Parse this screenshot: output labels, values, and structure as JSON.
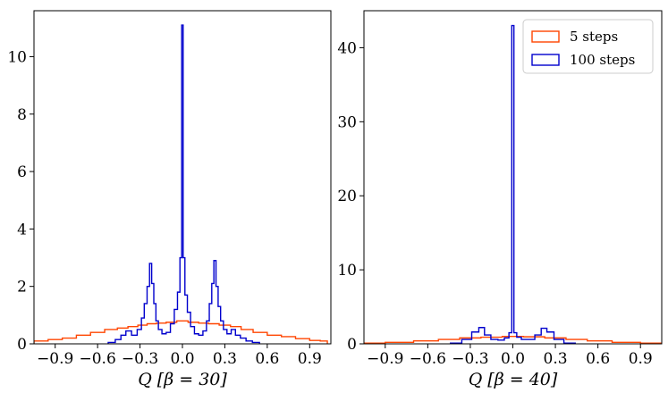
{
  "chart_data": [
    {
      "type": "histogram",
      "xlabel": "Q [β = 30]",
      "xlim": [
        -1.05,
        1.05
      ],
      "ylim": [
        0,
        11.6
      ],
      "xticks": [
        -0.9,
        -0.6,
        -0.3,
        0.0,
        0.3,
        0.6,
        0.9
      ],
      "xtick_labels": [
        "−0.9",
        "−0.6",
        "−0.3",
        "0.0",
        "0.3",
        "0.6",
        "0.9"
      ],
      "yticks": [
        0,
        2,
        4,
        6,
        8,
        10
      ],
      "ytick_labels": [
        "0",
        "2",
        "4",
        "6",
        "8",
        "10"
      ],
      "series": [
        {
          "name": "5 steps",
          "color": "#ff4500",
          "points": [
            [
              -1.0,
              0.1
            ],
            [
              -0.9,
              0.15
            ],
            [
              -0.8,
              0.2
            ],
            [
              -0.7,
              0.3
            ],
            [
              -0.6,
              0.4
            ],
            [
              -0.5,
              0.5
            ],
            [
              -0.42,
              0.55
            ],
            [
              -0.35,
              0.6
            ],
            [
              -0.28,
              0.65
            ],
            [
              -0.22,
              0.7
            ],
            [
              -0.15,
              0.72
            ],
            [
              -0.08,
              0.75
            ],
            [
              0.0,
              0.8
            ],
            [
              0.08,
              0.75
            ],
            [
              0.15,
              0.72
            ],
            [
              0.22,
              0.7
            ],
            [
              0.3,
              0.65
            ],
            [
              0.38,
              0.6
            ],
            [
              0.45,
              0.5
            ],
            [
              0.55,
              0.4
            ],
            [
              0.65,
              0.3
            ],
            [
              0.75,
              0.25
            ],
            [
              0.85,
              0.18
            ],
            [
              0.95,
              0.12
            ],
            [
              1.0,
              0.1
            ]
          ]
        },
        {
          "name": "100 steps",
          "color": "#0000cd",
          "points": [
            [
              -0.5,
              0.05
            ],
            [
              -0.45,
              0.15
            ],
            [
              -0.42,
              0.3
            ],
            [
              -0.38,
              0.45
            ],
            [
              -0.34,
              0.3
            ],
            [
              -0.3,
              0.5
            ],
            [
              -0.28,
              0.9
            ],
            [
              -0.26,
              1.4
            ],
            [
              -0.24,
              2.0
            ],
            [
              -0.225,
              2.8
            ],
            [
              -0.21,
              2.1
            ],
            [
              -0.195,
              1.4
            ],
            [
              -0.18,
              0.8
            ],
            [
              -0.16,
              0.5
            ],
            [
              -0.13,
              0.35
            ],
            [
              -0.1,
              0.4
            ],
            [
              -0.07,
              0.7
            ],
            [
              -0.045,
              1.2
            ],
            [
              -0.025,
              1.8
            ],
            [
              -0.01,
              3.0
            ],
            [
              0.0,
              11.1
            ],
            [
              0.01,
              3.0
            ],
            [
              0.025,
              1.7
            ],
            [
              0.045,
              1.1
            ],
            [
              0.07,
              0.6
            ],
            [
              0.1,
              0.35
            ],
            [
              0.13,
              0.3
            ],
            [
              0.16,
              0.45
            ],
            [
              0.18,
              0.8
            ],
            [
              0.2,
              1.4
            ],
            [
              0.215,
              2.1
            ],
            [
              0.23,
              2.9
            ],
            [
              0.245,
              2.0
            ],
            [
              0.26,
              1.3
            ],
            [
              0.28,
              0.8
            ],
            [
              0.3,
              0.5
            ],
            [
              0.33,
              0.35
            ],
            [
              0.36,
              0.5
            ],
            [
              0.39,
              0.3
            ],
            [
              0.43,
              0.2
            ],
            [
              0.47,
              0.1
            ],
            [
              0.52,
              0.05
            ]
          ]
        }
      ]
    },
    {
      "type": "histogram",
      "xlabel": "Q [β = 40]",
      "xlim": [
        -1.05,
        1.05
      ],
      "ylim": [
        0,
        45
      ],
      "xticks": [
        -0.9,
        -0.6,
        -0.3,
        0.0,
        0.3,
        0.6,
        0.9
      ],
      "xtick_labels": [
        "−0.9",
        "−0.6",
        "−0.3",
        "0.0",
        "0.3",
        "0.6",
        "0.9"
      ],
      "yticks": [
        0,
        10,
        20,
        30,
        40
      ],
      "ytick_labels": [
        "0",
        "10",
        "20",
        "30",
        "40"
      ],
      "legend_position": "top-right",
      "series": [
        {
          "name": "5 steps",
          "color": "#ff4500",
          "points": [
            [
              -1.0,
              0.1
            ],
            [
              -0.8,
              0.2
            ],
            [
              -0.6,
              0.4
            ],
            [
              -0.45,
              0.6
            ],
            [
              -0.3,
              0.8
            ],
            [
              -0.15,
              0.9
            ],
            [
              0.0,
              1.0
            ],
            [
              0.15,
              0.95
            ],
            [
              0.3,
              0.8
            ],
            [
              0.45,
              0.6
            ],
            [
              0.6,
              0.4
            ],
            [
              0.8,
              0.2
            ],
            [
              1.0,
              0.1
            ]
          ]
        },
        {
          "name": "100 steps",
          "color": "#0000cd",
          "points": [
            [
              -0.4,
              0.1
            ],
            [
              -0.32,
              0.6
            ],
            [
              -0.26,
              1.6
            ],
            [
              -0.22,
              2.2
            ],
            [
              -0.18,
              1.2
            ],
            [
              -0.13,
              0.6
            ],
            [
              -0.08,
              0.5
            ],
            [
              -0.04,
              0.8
            ],
            [
              -0.015,
              1.5
            ],
            [
              0.0,
              43.0
            ],
            [
              0.015,
              1.5
            ],
            [
              0.04,
              0.9
            ],
            [
              0.08,
              0.6
            ],
            [
              0.13,
              0.6
            ],
            [
              0.18,
              1.2
            ],
            [
              0.22,
              2.1
            ],
            [
              0.26,
              1.6
            ],
            [
              0.32,
              0.6
            ],
            [
              0.4,
              0.1
            ]
          ]
        }
      ]
    }
  ]
}
